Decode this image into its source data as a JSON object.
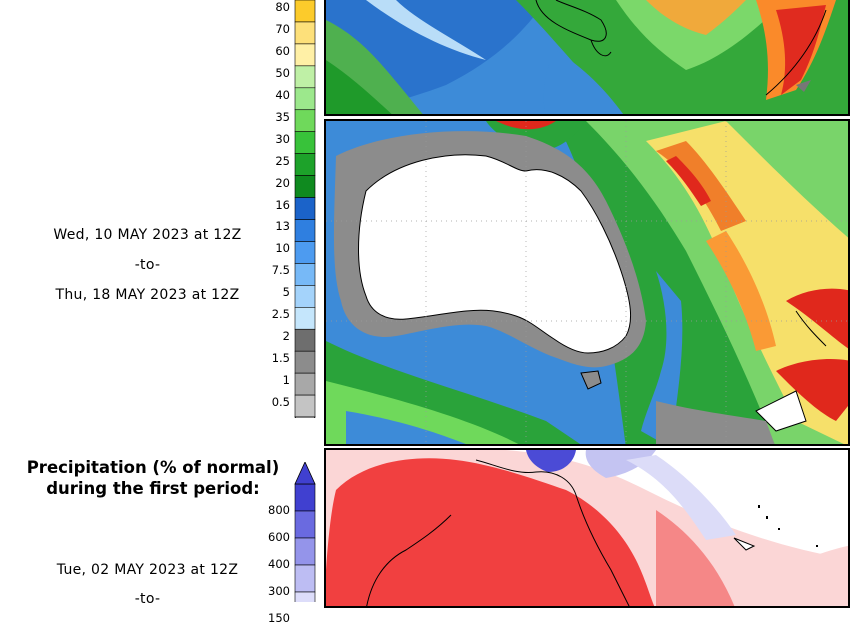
{
  "first_map_block": {
    "date_start": "Wed, 10 MAY 2023 at 12Z",
    "date_separator": "-to-",
    "date_end": "Thu, 18 MAY 2023 at 12Z",
    "scale_labels": [
      "80",
      "70",
      "60",
      "50",
      "40",
      "35",
      "30",
      "25",
      "20",
      "16",
      "13",
      "10",
      "7.5",
      "5",
      "2.5",
      "2",
      "1.5",
      "1",
      "0.5"
    ],
    "scale_colors": [
      "#fccb2b",
      "#fde07a",
      "#fff0a6",
      "#bff0a6",
      "#9ce88c",
      "#6fd95b",
      "#38c23a",
      "#1da22a",
      "#0f8a1f",
      "#1b63c9",
      "#2f7fe0",
      "#4d9bf0",
      "#77b9f7",
      "#a4d3fb",
      "#c5e6fc",
      "#6e6e6e",
      "#8c8c8c",
      "#a8a8a8",
      "#c4c4c4"
    ]
  },
  "second_map_block": {
    "title_line1": "Precipitation (% of normal)",
    "title_line2": "during the first period:",
    "scale_labels": [
      "800",
      "600",
      "400",
      "300",
      "150"
    ],
    "scale_colors": [
      "#4040d0",
      "#6a6ae0",
      "#9494ea",
      "#bdbdf3",
      "#ddddfa"
    ],
    "date_start": "Tue, 02 MAY 2023 at 12Z",
    "date_separator": "-to-"
  }
}
